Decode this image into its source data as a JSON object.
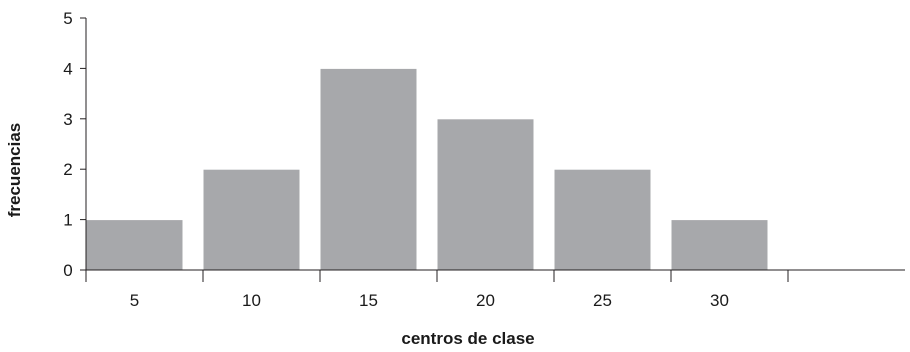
{
  "chart_data": {
    "type": "bar",
    "categories": [
      "5",
      "10",
      "15",
      "20",
      "25",
      "30",
      ""
    ],
    "values": [
      1,
      2,
      4,
      3,
      2,
      1,
      0
    ],
    "title": "",
    "xlabel": "centros de clase",
    "ylabel": "frecuencias",
    "ylim": [
      0,
      5
    ],
    "yticks": [
      "0",
      "1",
      "2",
      "3",
      "4",
      "5"
    ],
    "grid": false,
    "legend": "none",
    "colors": {
      "bar": "#a7a8ab",
      "axis": "#231f20",
      "text": "#1a1a1a"
    }
  }
}
